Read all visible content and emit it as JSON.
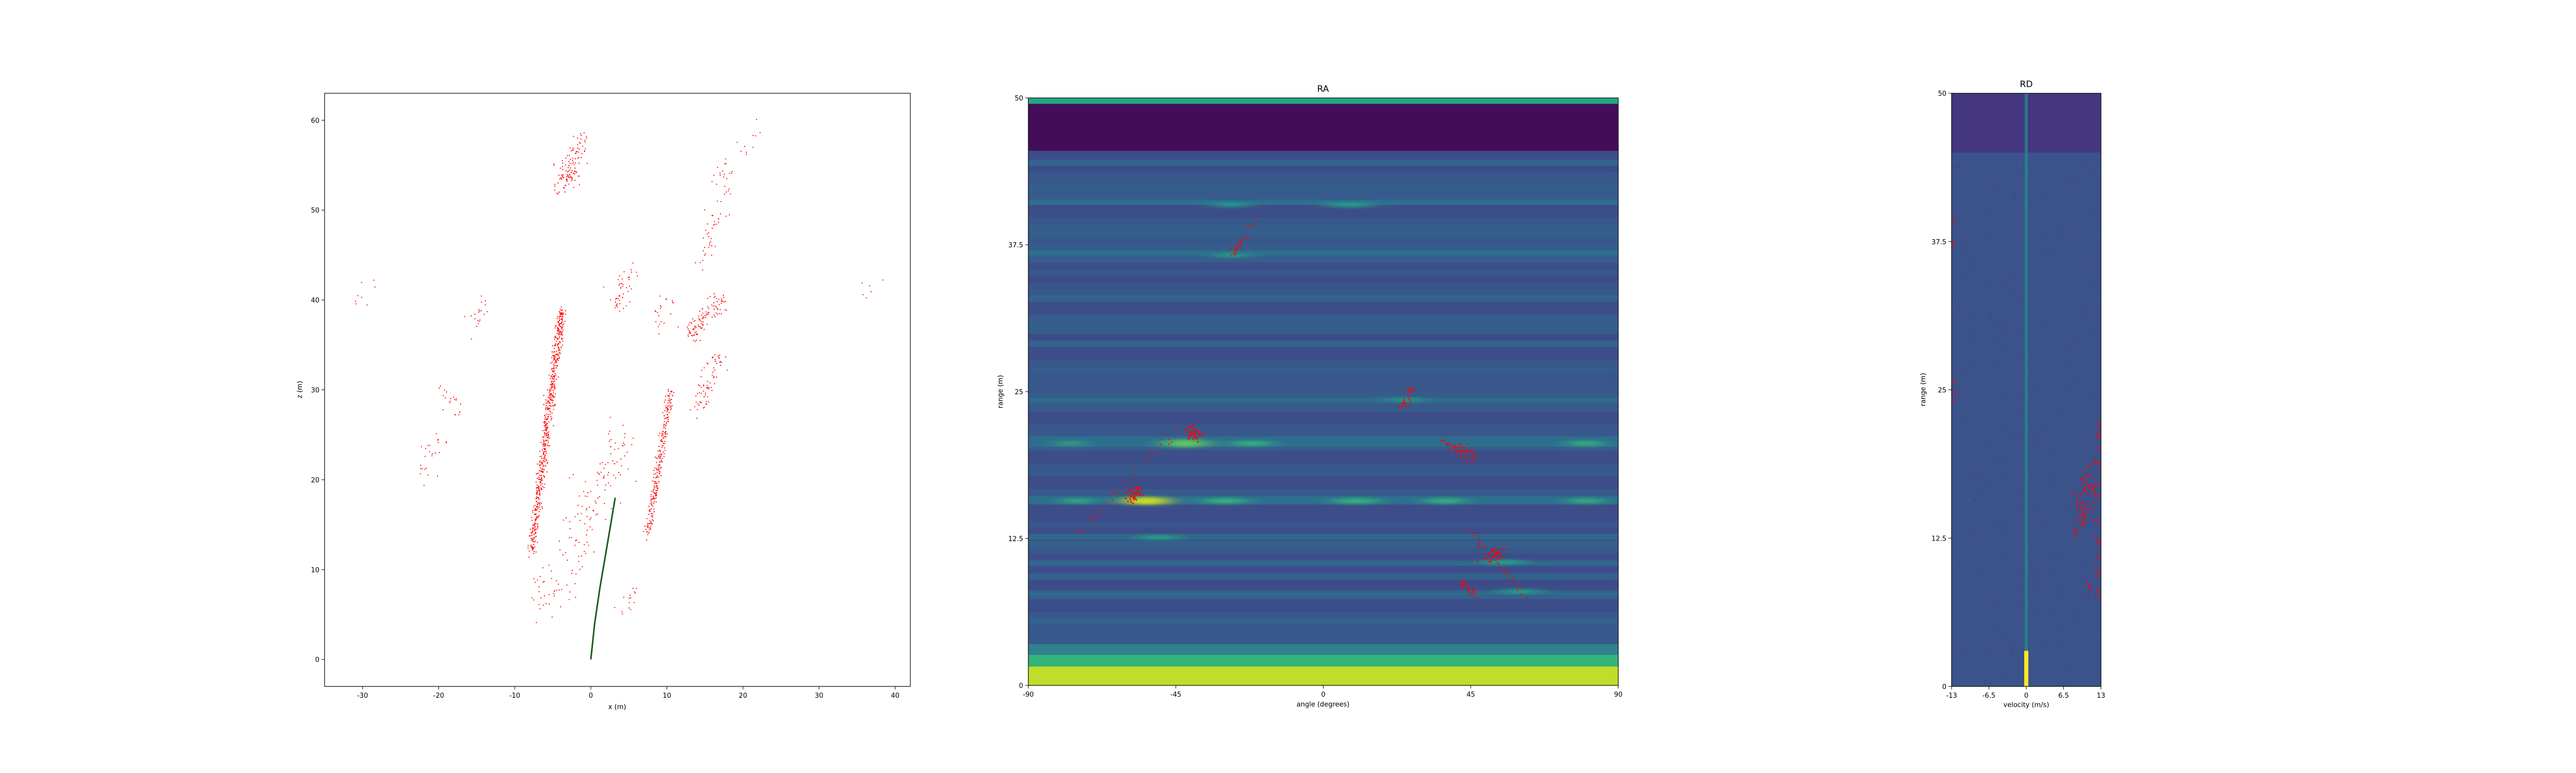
{
  "chart_data": [
    {
      "type": "scatter",
      "title": "",
      "xlabel": "x (m)",
      "ylabel": "z (m)",
      "xlim": [
        -35,
        42
      ],
      "ylim": [
        -3,
        63
      ],
      "xticks": [
        -30,
        -20,
        -10,
        0,
        10,
        20,
        30,
        40
      ],
      "yticks": [
        0,
        10,
        20,
        30,
        40,
        50,
        60
      ],
      "grid": false,
      "series": [
        {
          "color": "#ff0000",
          "clusters": [
            {
              "x0": -7.8,
              "z0": 12,
              "x1": -3.8,
              "z1": 39,
              "n": 650,
              "spread": 0.55
            },
            {
              "x0": 7.5,
              "z0": 14,
              "x1": 10.5,
              "z1": 30,
              "n": 260,
              "spread": 0.5
            },
            {
              "x0": -6,
              "z0": 6,
              "x1": 4,
              "z1": 24,
              "n": 160,
              "spread": 3.0
            },
            {
              "x0": -4,
              "z0": 52,
              "x1": -1,
              "z1": 58,
              "n": 120,
              "spread": 1.3
            },
            {
              "x0": 13,
              "z0": 36,
              "x1": 17,
              "z1": 40,
              "n": 110,
              "spread": 1.2
            },
            {
              "x0": 14,
              "z0": 28,
              "x1": 17,
              "z1": 34,
              "n": 70,
              "spread": 1.2
            },
            {
              "x0": 15,
              "z0": 44,
              "x1": 18,
              "z1": 56,
              "n": 60,
              "spread": 1.2
            },
            {
              "x0": 3,
              "z0": 39,
              "x1": 6,
              "z1": 44,
              "n": 45,
              "spread": 1.2
            },
            {
              "x0": 9,
              "z0": 37,
              "x1": 10,
              "z1": 41,
              "n": 20,
              "spread": 1.5
            },
            {
              "x0": -22,
              "z0": 20,
              "x1": -20,
              "z1": 25,
              "n": 25,
              "spread": 1.4
            },
            {
              "x0": -17,
              "z0": 27,
              "x1": -19,
              "z1": 30,
              "n": 20,
              "spread": 1.4
            },
            {
              "x0": -16,
              "z0": 36,
              "x1": -14,
              "z1": 40,
              "n": 20,
              "spread": 1.4
            },
            {
              "x0": -31,
              "z0": 40,
              "x1": -28,
              "z1": 42,
              "n": 8,
              "spread": 1.0
            },
            {
              "x0": 20,
              "z0": 56,
              "x1": 22,
              "z1": 60,
              "n": 10,
              "spread": 1.0
            },
            {
              "x0": 35,
              "z0": 40,
              "x1": 38,
              "z1": 43,
              "n": 6,
              "spread": 1.0
            },
            {
              "x0": 4,
              "z0": 5,
              "x1": 6,
              "z1": 8,
              "n": 15,
              "spread": 0.8
            }
          ]
        },
        {
          "color": "#1a5c1a",
          "path": [
            [
              0,
              0
            ],
            [
              0.5,
              4
            ],
            [
              1.2,
              8
            ],
            [
              2.0,
              12
            ],
            [
              2.8,
              16
            ],
            [
              3.2,
              18
            ]
          ]
        }
      ]
    },
    {
      "type": "heatmap",
      "title": "RA",
      "xlabel": "angle (degrees)",
      "ylabel": "range (m)",
      "xlim": [
        -90,
        90
      ],
      "ylim": [
        0,
        50
      ],
      "xticks": [
        "-90",
        "-45",
        "0",
        "45",
        "90"
      ],
      "xtick_values": [
        -90,
        -45,
        0,
        45,
        90
      ],
      "yticks": [
        "0",
        "12.5",
        "25",
        "37.5",
        "50"
      ],
      "ytick_values": [
        0,
        12.5,
        25,
        37.5,
        50
      ],
      "colormap": "viridis",
      "background": "#3b528b",
      "bands": [
        {
          "y0": 45.5,
          "y1": 49.5,
          "color": "#440d58",
          "opacity": 1
        },
        {
          "y0": 49.5,
          "y1": 50,
          "color": "#24a884",
          "opacity": 1
        },
        {
          "y0": 0,
          "y1": 1.6,
          "color": "#bede2a",
          "opacity": 1
        },
        {
          "y0": 1.6,
          "y1": 2.6,
          "color": "#33b57a",
          "opacity": 1
        },
        {
          "y0": 2.6,
          "y1": 3.5,
          "color": "#2e8e8c",
          "opacity": 0.8
        },
        {
          "y0": 40.9,
          "y1": 41.3,
          "color": "#2a788e",
          "opacity": 0.7
        },
        {
          "y0": 36.6,
          "y1": 37.0,
          "color": "#2a788e",
          "opacity": 0.6
        },
        {
          "y0": 24.1,
          "y1": 24.5,
          "color": "#2a788e",
          "opacity": 0.6
        },
        {
          "y0": 20.3,
          "y1": 21.2,
          "color": "#2a788e",
          "opacity": 0.7
        },
        {
          "y0": 15.4,
          "y1": 16.1,
          "color": "#2a788e",
          "opacity": 0.7
        },
        {
          "y0": 12.4,
          "y1": 12.9,
          "color": "#2a788e",
          "opacity": 0.6
        },
        {
          "y0": 10.2,
          "y1": 10.6,
          "color": "#2a788e",
          "opacity": 0.5
        },
        {
          "y0": 7.7,
          "y1": 8.1,
          "color": "#2a788e",
          "opacity": 0.5
        }
      ],
      "blobs": [
        {
          "x": -54,
          "y": 15.7,
          "w": 14,
          "h": 0.7,
          "color": "#d2e21b"
        },
        {
          "x": -42,
          "y": 20.6,
          "w": 14,
          "h": 0.7,
          "color": "#5ec962"
        },
        {
          "x": -77,
          "y": 20.6,
          "w": 6,
          "h": 0.5,
          "color": "#35b779"
        },
        {
          "x": -22,
          "y": 20.6,
          "w": 12,
          "h": 0.5,
          "color": "#35b779"
        },
        {
          "x": -75,
          "y": 15.7,
          "w": 8,
          "h": 0.5,
          "color": "#35b779"
        },
        {
          "x": -30,
          "y": 15.7,
          "w": 14,
          "h": 0.5,
          "color": "#35b779"
        },
        {
          "x": 10,
          "y": 15.7,
          "w": 14,
          "h": 0.5,
          "color": "#35b779"
        },
        {
          "x": 37,
          "y": 15.7,
          "w": 12,
          "h": 0.5,
          "color": "#35b779"
        },
        {
          "x": 80,
          "y": 15.7,
          "w": 10,
          "h": 0.5,
          "color": "#35b779"
        },
        {
          "x": 80,
          "y": 20.6,
          "w": 10,
          "h": 0.5,
          "color": "#35b779"
        },
        {
          "x": -28,
          "y": 40.9,
          "w": 10,
          "h": 0.4,
          "color": "#22a884"
        },
        {
          "x": 8,
          "y": 40.9,
          "w": 14,
          "h": 0.4,
          "color": "#22a884"
        },
        {
          "x": -28,
          "y": 36.6,
          "w": 10,
          "h": 0.4,
          "color": "#22a884"
        },
        {
          "x": 25,
          "y": 24.3,
          "w": 8,
          "h": 0.4,
          "color": "#22a884"
        },
        {
          "x": 55,
          "y": 10.5,
          "w": 14,
          "h": 0.4,
          "color": "#22a884"
        },
        {
          "x": 60,
          "y": 8.0,
          "w": 12,
          "h": 0.4,
          "color": "#22a884"
        },
        {
          "x": -50,
          "y": 12.6,
          "w": 12,
          "h": 0.4,
          "color": "#22a884"
        }
      ],
      "overlay": {
        "color": "#ff0000",
        "segments": [
          [
            -75,
            12.8,
            -44,
            22.0
          ],
          [
            -28,
            36.5,
            -21,
            39.8
          ],
          [
            24,
            23.5,
            27,
            25.2
          ],
          [
            36,
            21.0,
            46,
            18.8
          ],
          [
            40,
            20.5,
            47,
            19.5
          ],
          [
            45,
            13.0,
            62,
            7.5
          ],
          [
            42,
            8.8,
            47,
            7.6
          ]
        ],
        "dense": [
          [
            -58,
            16.2
          ],
          [
            -40,
            21.5
          ],
          [
            52,
            11.2
          ]
        ]
      }
    },
    {
      "type": "heatmap",
      "title": "RD",
      "xlabel": "velocity (m/s)",
      "ylabel": "range (m)",
      "xlim": [
        -13,
        13
      ],
      "ylim": [
        0,
        50
      ],
      "xticks": [
        "-13",
        "-6.5",
        "0",
        "6.5",
        "13"
      ],
      "xtick_values": [
        -13,
        -6.5,
        0,
        6.5,
        13
      ],
      "yticks": [
        "0",
        "12.5",
        "25",
        "37.5",
        "50"
      ],
      "ytick_values": [
        0,
        12.5,
        25,
        37.5,
        50
      ],
      "colormap": "viridis",
      "background": "#3b528b",
      "bands": [
        {
          "y0": 45,
          "y1": 50,
          "color": "#46327e",
          "opacity": 0.85
        }
      ],
      "zero_doppler": {
        "color": "#21918c",
        "bright_color": "#fde725",
        "bright_y": 3
      },
      "overlay": {
        "color": "#ff0000",
        "points": [
          [
            -13,
            25.5
          ],
          [
            -13,
            24.5
          ],
          [
            -13,
            39.0
          ],
          [
            -12.8,
            37.5
          ],
          [
            8.5,
            16.0
          ],
          [
            9.5,
            17.5
          ],
          [
            10.5,
            15.0
          ],
          [
            9.8,
            13.5
          ],
          [
            11.0,
            16.5
          ],
          [
            9.2,
            14.2
          ],
          [
            10.0,
            16.8
          ],
          [
            8.8,
            12.8
          ],
          [
            9.6,
            15.4
          ],
          [
            10.2,
            14.6
          ],
          [
            12.3,
            19.0
          ],
          [
            12.5,
            21.0
          ],
          [
            12.8,
            20.0
          ],
          [
            12.6,
            22.0
          ],
          [
            12.9,
            18.5
          ],
          [
            11.5,
            17.2
          ],
          [
            11.8,
            15.8
          ],
          [
            12.0,
            14.0
          ],
          [
            12.4,
            12.5
          ],
          [
            12.7,
            11.2
          ],
          [
            12.5,
            9.5
          ],
          [
            12.8,
            8.0
          ],
          [
            11.0,
            8.5
          ],
          [
            12.0,
            17.0
          ],
          [
            10.8,
            18.0
          ]
        ]
      }
    }
  ]
}
